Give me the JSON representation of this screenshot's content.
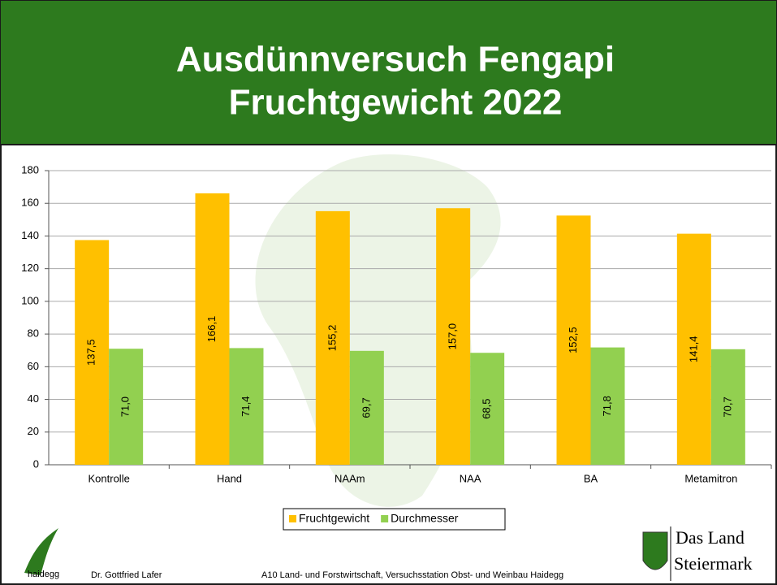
{
  "chart_data": {
    "type": "bar",
    "title": "Ausdünnversuch Fengapi",
    "subtitle": "Fruchtgewicht 2022",
    "categories": [
      "Kontrolle",
      "Hand",
      "NAAm",
      "NAA",
      "BA",
      "Metamitron"
    ],
    "series": [
      {
        "name": "Fruchtgewicht",
        "color": "#ffc000",
        "values": [
          137.5,
          166.1,
          155.2,
          157.0,
          152.5,
          141.4
        ],
        "value_labels": [
          "137,5",
          "166,1",
          "155,2",
          "157,0",
          "152,5",
          "141,4"
        ]
      },
      {
        "name": "Durchmesser",
        "color": "#92d050",
        "values": [
          71.0,
          71.4,
          69.7,
          68.5,
          71.8,
          70.7
        ],
        "value_labels": [
          "71,0",
          "71,4",
          "69,7",
          "68,5",
          "71,8",
          "70,7"
        ]
      }
    ],
    "ylim": [
      0,
      180
    ],
    "yticks": [
      0,
      20,
      40,
      60,
      80,
      100,
      120,
      140,
      160,
      180
    ],
    "grid": true,
    "legend": "bottom"
  },
  "footer": {
    "logo": "haidegg",
    "author": "Dr. Gottfried Lafer",
    "institution": "A10 Land- und Forstwirtschaft, Versuchsstation Obst- und Weinbau Haidegg",
    "brand_line1": "Das Land",
    "brand_line2": "Steiermark"
  }
}
